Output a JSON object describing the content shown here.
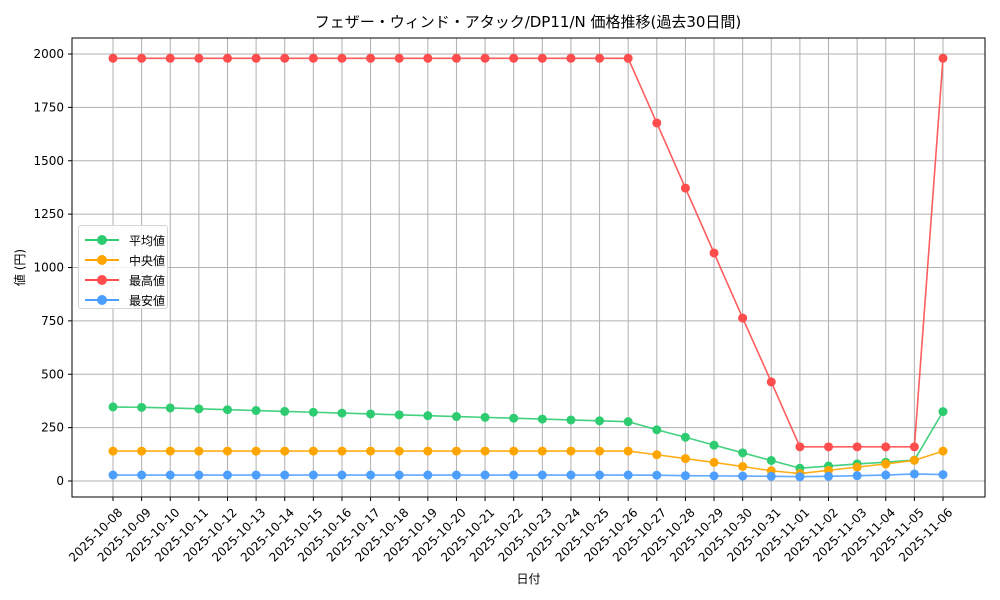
{
  "chart_data": {
    "type": "line",
    "title": "フェザー・ウィンド・アタック/DP11/N 価格推移(過去30日間)",
    "xlabel": "日付",
    "ylabel": "値 (円)",
    "ylim": [
      -80,
      2070
    ],
    "yticks": [
      0,
      250,
      500,
      750,
      1000,
      1250,
      1500,
      1750,
      2000
    ],
    "grid": true,
    "legend_position": "center left",
    "x": [
      "2025-10-08",
      "2025-10-09",
      "2025-10-10",
      "2025-10-11",
      "2025-10-12",
      "2025-10-13",
      "2025-10-14",
      "2025-10-15",
      "2025-10-16",
      "2025-10-17",
      "2025-10-18",
      "2025-10-19",
      "2025-10-20",
      "2025-10-21",
      "2025-10-22",
      "2025-10-23",
      "2025-10-24",
      "2025-10-25",
      "2025-10-26",
      "2025-10-27",
      "2025-10-28",
      "2025-10-29",
      "2025-10-30",
      "2025-10-31",
      "2025-11-01",
      "2025-11-02",
      "2025-11-03",
      "2025-11-04",
      "2025-11-05",
      "2025-11-06"
    ],
    "series": [
      {
        "name": "平均値",
        "color": "#2ecc71",
        "values": [
          347,
          345,
          342,
          338,
          334,
          330,
          326,
          322,
          318,
          314,
          310,
          306,
          302,
          298,
          294,
          290,
          286,
          282,
          278,
          240,
          205,
          168,
          132,
          96,
          60,
          70,
          80,
          88,
          98,
          325
        ]
      },
      {
        "name": "中央値",
        "color": "#ffa500",
        "values": [
          140,
          140,
          140,
          140,
          140,
          140,
          140,
          140,
          140,
          140,
          140,
          140,
          140,
          140,
          140,
          140,
          140,
          140,
          140,
          123,
          105,
          87,
          68,
          48,
          35,
          50,
          65,
          80,
          97,
          140
        ]
      },
      {
        "name": "最高値",
        "color": "#ff4d4d",
        "values": [
          1980,
          1980,
          1980,
          1980,
          1980,
          1980,
          1980,
          1980,
          1980,
          1980,
          1980,
          1980,
          1980,
          1980,
          1980,
          1980,
          1980,
          1980,
          1980,
          1677,
          1372,
          1068,
          763,
          464,
          160,
          160,
          160,
          160,
          160,
          1980
        ]
      },
      {
        "name": "最安値",
        "color": "#4d9fff",
        "values": [
          28,
          28,
          28,
          28,
          28,
          28,
          28,
          28,
          28,
          28,
          28,
          28,
          28,
          28,
          28,
          28,
          28,
          28,
          28,
          27,
          25,
          24,
          23,
          22,
          20,
          22,
          25,
          28,
          33,
          30
        ]
      }
    ]
  }
}
